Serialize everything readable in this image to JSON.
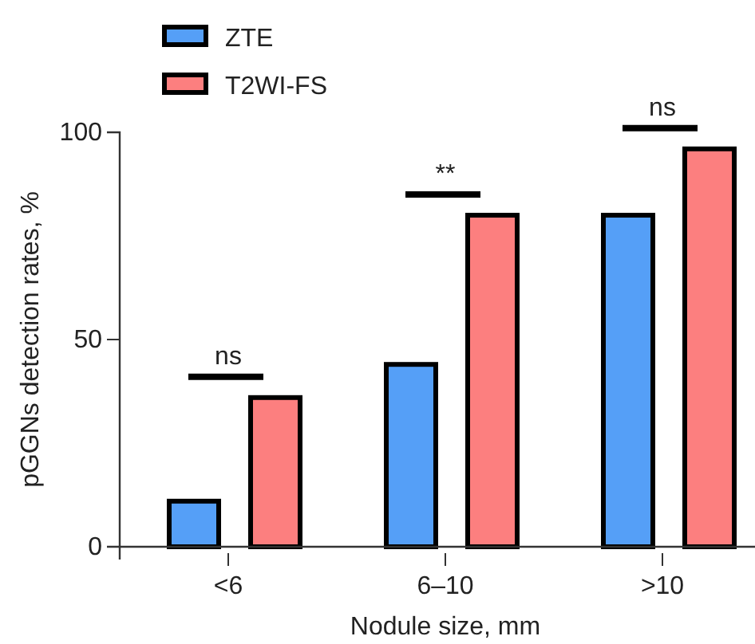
{
  "chart_data": {
    "type": "bar",
    "xlabel": "Nodule size, mm",
    "ylabel": "pGGNs detection rates, %",
    "categories": [
      "<6",
      "6–10",
      ">10"
    ],
    "series": [
      {
        "name": "ZTE",
        "color": "#559ff7",
        "values": [
          11,
          44,
          80
        ]
      },
      {
        "name": "T2WI-FS",
        "color": "#fc7f7f",
        "values": [
          36,
          80,
          96
        ]
      }
    ],
    "ylim": [
      0,
      100
    ],
    "yticks": [
      0,
      50,
      100
    ],
    "legend": "top left",
    "grid": false,
    "annotations": [
      "ns",
      "**",
      "ns"
    ]
  }
}
